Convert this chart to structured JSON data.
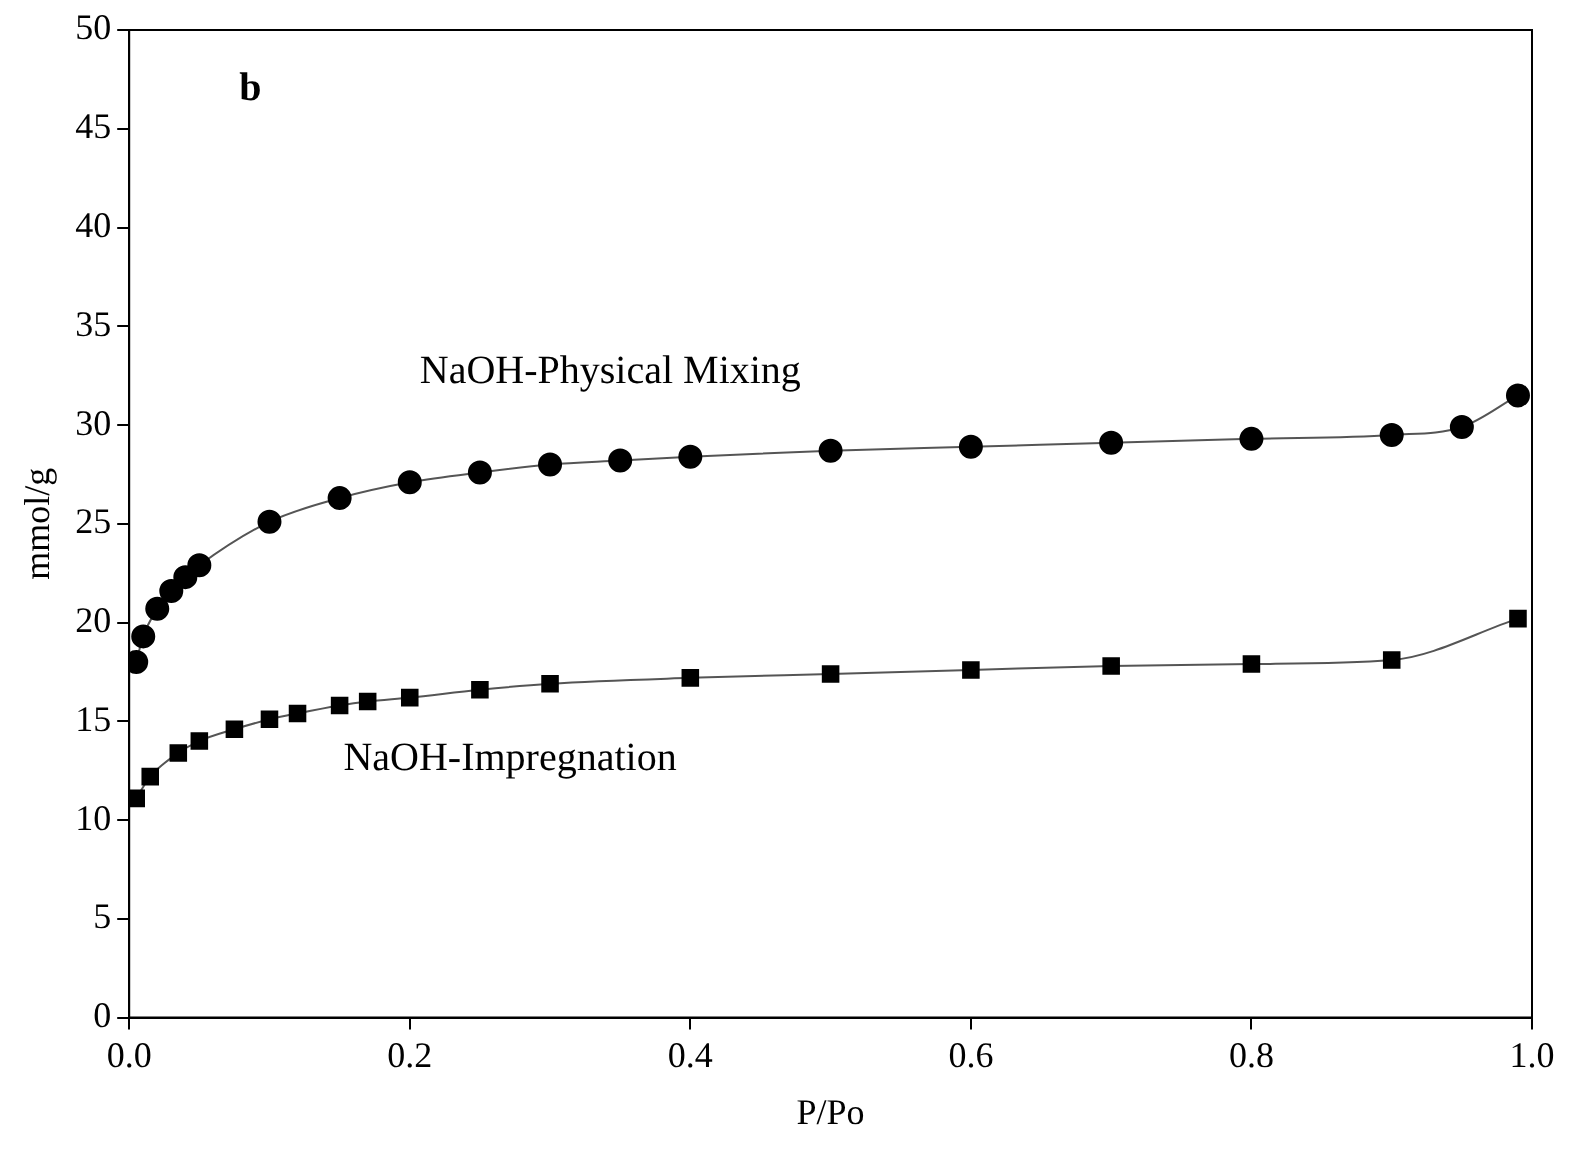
{
  "chart_data": {
    "type": "line",
    "xlabel": "P/Po",
    "ylabel": "mmol/g",
    "annotations": [
      "b"
    ],
    "xlim": [
      0,
      1
    ],
    "xticks": [
      {
        "value": 0,
        "label": "0.0"
      },
      0.2,
      0.4,
      0.6,
      0.8,
      {
        "value": 1,
        "label": "1.0"
      }
    ],
    "ylim": [
      0,
      50
    ],
    "yticks": [
      0,
      5,
      10,
      15,
      20,
      25,
      30,
      35,
      40,
      45,
      50
    ],
    "grid": false,
    "legend": false,
    "line_style": "solid",
    "series": [
      {
        "name": "NaOH-Physical Mixing",
        "color": "#000000",
        "marker": "circle",
        "x": [
          0.005,
          0.01,
          0.02,
          0.03,
          0.04,
          0.05,
          0.1,
          0.15,
          0.2,
          0.25,
          0.3,
          0.35,
          0.4,
          0.5,
          0.6,
          0.7,
          0.8,
          0.9,
          0.95,
          0.99
        ],
        "values": [
          18.0,
          19.3,
          20.7,
          21.6,
          22.3,
          22.9,
          25.1,
          26.3,
          27.1,
          27.6,
          28.0,
          28.2,
          28.4,
          28.7,
          28.9,
          29.1,
          29.3,
          29.5,
          29.9,
          31.5
        ]
      },
      {
        "name": "NaOH-Impregnation",
        "color": "#000000",
        "marker": "square",
        "x": [
          0.005,
          0.015,
          0.035,
          0.05,
          0.075,
          0.1,
          0.12,
          0.15,
          0.17,
          0.2,
          0.25,
          0.3,
          0.4,
          0.5,
          0.6,
          0.7,
          0.8,
          0.9,
          0.99
        ],
        "values": [
          11.1,
          12.2,
          13.4,
          14.0,
          14.6,
          15.1,
          15.4,
          15.8,
          16.0,
          16.2,
          16.6,
          16.9,
          17.2,
          17.4,
          17.6,
          17.8,
          17.9,
          18.1,
          20.2
        ]
      }
    ]
  }
}
